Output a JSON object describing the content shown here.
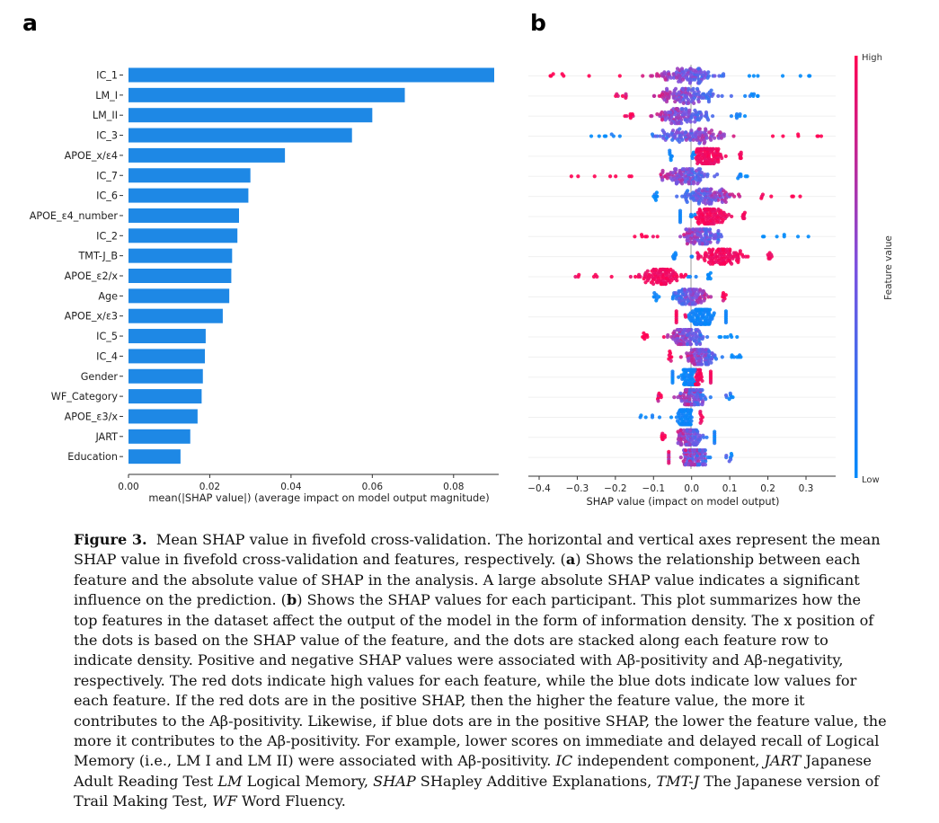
{
  "panels": {
    "a": "a",
    "b": "b"
  },
  "chart_data": [
    {
      "type": "bar",
      "orientation": "horizontal",
      "categories": [
        "IC_1",
        "LM_I",
        "LM_II",
        "IC_3",
        "APOE_x/ε4",
        "IC_7",
        "IC_6",
        "APOE_ε4_number",
        "IC_2",
        "TMT-J_B",
        "APOE_ε2/x",
        "Age",
        "APOE_x/ε3",
        "IC_5",
        "IC_4",
        "Gender",
        "WF_Category",
        "APOE_ε3/x",
        "JART",
        "Education"
      ],
      "values": [
        0.09,
        0.068,
        0.06,
        0.055,
        0.0385,
        0.03,
        0.0295,
        0.0272,
        0.0268,
        0.0255,
        0.0253,
        0.0248,
        0.0232,
        0.019,
        0.0188,
        0.0183,
        0.018,
        0.017,
        0.0152,
        0.0128
      ],
      "xlabel": "mean(|SHAP value|) (average impact on model output magnitude)",
      "xlim": [
        0,
        0.09
      ],
      "xticks": [
        0.0,
        0.02,
        0.04,
        0.06,
        0.08
      ],
      "xtick_labels": [
        "0.00",
        "0.02",
        "0.04",
        "0.06",
        "0.08"
      ],
      "bar_color": "#1e88e5"
    },
    {
      "type": "scatter",
      "subtype": "beeswarm",
      "features_order_same_as_panel_a": true,
      "xlabel": "SHAP value (impact on model output)",
      "xlim": [
        -0.42,
        0.37
      ],
      "xticks": [
        -0.4,
        -0.3,
        -0.2,
        -0.1,
        0.0,
        0.1,
        0.2,
        0.3
      ],
      "xtick_labels": [
        "−0.4",
        "−0.3",
        "−0.2",
        "−0.1",
        "0.0",
        "0.1",
        "0.2",
        "0.3"
      ],
      "colorbar": {
        "label": "Feature value",
        "high": "High",
        "low": "Low",
        "low_color": "#008afb",
        "high_color": "#ff0052"
      },
      "rows": [
        {
          "feature": "IC_1",
          "core_min": -0.18,
          "core_max": 0.15,
          "tail_min": -0.4,
          "tail_max": 0.34,
          "mode": "neg-high"
        },
        {
          "feature": "LM_I",
          "core_min": -0.17,
          "core_max": 0.14,
          "tail_min": -0.2,
          "tail_max": 0.18,
          "mode": "neg-high"
        },
        {
          "feature": "LM_II",
          "core_min": -0.15,
          "core_max": 0.1,
          "tail_min": -0.18,
          "tail_max": 0.14,
          "mode": "neg-high"
        },
        {
          "feature": "IC_3",
          "core_min": -0.18,
          "core_max": 0.18,
          "tail_min": -0.27,
          "tail_max": 0.34,
          "mode": "pos-high"
        },
        {
          "feature": "APOE_x/ε4",
          "core_min": -0.05,
          "core_max": 0.12,
          "tail_min": -0.06,
          "tail_max": 0.13,
          "mode": "split-pos"
        },
        {
          "feature": "IC_7",
          "core_min": -0.15,
          "core_max": 0.12,
          "tail_min": -0.35,
          "tail_max": 0.15,
          "mode": "neg-high"
        },
        {
          "feature": "IC_6",
          "core_min": -0.09,
          "core_max": 0.18,
          "tail_min": -0.1,
          "tail_max": 0.29,
          "mode": "pos-high"
        },
        {
          "feature": "APOE_ε4_number",
          "core_min": -0.03,
          "core_max": 0.13,
          "tail_min": -0.03,
          "tail_max": 0.14,
          "mode": "split-pos"
        },
        {
          "feature": "IC_2",
          "core_min": -0.08,
          "core_max": 0.13,
          "tail_min": -0.15,
          "tail_max": 0.32,
          "mode": "neg-high"
        },
        {
          "feature": "TMT-J_B",
          "core_min": -0.04,
          "core_max": 0.2,
          "tail_min": -0.05,
          "tail_max": 0.21,
          "mode": "split-pos"
        },
        {
          "feature": "APOE_ε2/x",
          "core_min": -0.2,
          "core_max": 0.04,
          "tail_min": -0.31,
          "tail_max": 0.05,
          "mode": "split-neg"
        },
        {
          "feature": "Age",
          "core_min": -0.08,
          "core_max": 0.08,
          "tail_min": -0.1,
          "tail_max": 0.09,
          "mode": "pos-high"
        },
        {
          "feature": "APOE_x/ε3",
          "core_min": -0.04,
          "core_max": 0.09,
          "tail_min": -0.04,
          "tail_max": 0.09,
          "mode": "split-neg"
        },
        {
          "feature": "IC_5",
          "core_min": -0.1,
          "core_max": 0.07,
          "tail_min": -0.13,
          "tail_max": 0.12,
          "mode": "neg-high"
        },
        {
          "feature": "IC_4",
          "core_min": -0.05,
          "core_max": 0.1,
          "tail_min": -0.06,
          "tail_max": 0.14,
          "mode": "neg-high"
        },
        {
          "feature": "Gender",
          "core_min": -0.05,
          "core_max": 0.05,
          "tail_min": -0.05,
          "tail_max": 0.05,
          "mode": "split-pos"
        },
        {
          "feature": "WF_Category",
          "core_min": -0.07,
          "core_max": 0.07,
          "tail_min": -0.09,
          "tail_max": 0.11,
          "mode": "neg-low"
        },
        {
          "feature": "APOE_ε3/x",
          "core_min": -0.05,
          "core_max": 0.02,
          "tail_min": -0.18,
          "tail_max": 0.03,
          "mode": "split-pos"
        },
        {
          "feature": "JART",
          "core_min": -0.07,
          "core_max": 0.06,
          "tail_min": -0.08,
          "tail_max": 0.06,
          "mode": "neg-high"
        },
        {
          "feature": "Education",
          "core_min": -0.06,
          "core_max": 0.08,
          "tail_min": -0.06,
          "tail_max": 0.11,
          "mode": "neg-low"
        }
      ]
    }
  ],
  "caption": {
    "figure_label": "Figure 3.",
    "body1": "Mean SHAP value in fivefold cross-validation. The horizontal and vertical axes represent the mean SHAP value in fivefold cross-validation and features, respectively. (",
    "a": "a",
    "body2": ") Shows the relationship between each feature and the absolute value of SHAP in the analysis. A large absolute SHAP value indicates a significant influence on the prediction. (",
    "b": "b",
    "body3": ") Shows the SHAP values for each participant. This plot summarizes how the top features in the dataset affect the output of the model in the form of information density. The x position of the dots is based on the SHAP value of the feature, and the dots are stacked along each feature row to indicate density. Positive and negative SHAP values were associated with Aβ-positivity and Aβ-negativity, respectively. The red dots indicate high values for each feature, while the blue dots indicate low values for each feature. If the red dots are in the positive SHAP, then the higher the feature value, the more it contributes to the Aβ-positivity. Likewise, if blue dots are in the positive SHAP, the lower the feature value, the more it contributes to the Aβ-positivity. For example, lower scores on immediate and delayed recall of Logical Memory (i.e., LM I and LM II) were associated with Aβ-positivity. ",
    "abbr_ic": "IC",
    "def_ic": " independent component, ",
    "abbr_jart": "JART",
    "def_jart": " Japanese Adult Reading Test ",
    "abbr_lm": "LM",
    "def_lm": " Logical Memory, ",
    "abbr_shap": "SHAP",
    "def_shap": " SHapley Additive Explanations, ",
    "abbr_tmt": "TMT-J",
    "def_tmt": " The Japanese version of Trail Making Test, ",
    "abbr_wf": "WF",
    "def_wf": " Word Fluency."
  }
}
